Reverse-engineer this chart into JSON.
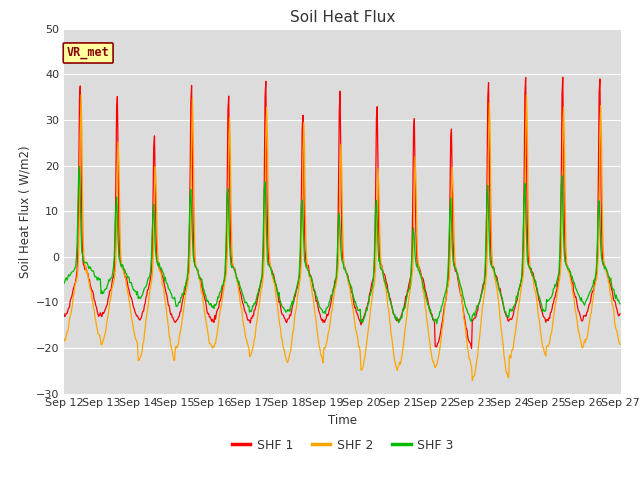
{
  "title": "Soil Heat Flux",
  "ylabel": "Soil Heat Flux (W/m2)",
  "xlabel": "Time",
  "ylim": [
    -30,
    50
  ],
  "background_color": "#dcdcdc",
  "legend_label": "VR_met",
  "series_colors": [
    "#ff0000",
    "#ffa500",
    "#00bb00"
  ],
  "series_names": [
    "SHF 1",
    "SHF 2",
    "SHF 3"
  ],
  "xtick_labels": [
    "Sep 12",
    "Sep 13",
    "Sep 14",
    "Sep 15",
    "Sep 16",
    "Sep 17",
    "Sep 18",
    "Sep 19",
    "Sep 20",
    "Sep 21",
    "Sep 22",
    "Sep 23",
    "Sep 24",
    "Sep 25",
    "Sep 26",
    "Sep 27"
  ],
  "n_days": 15,
  "shf1_peaks": [
    41,
    39,
    30,
    41,
    39,
    42,
    35,
    40,
    37,
    34,
    33,
    42,
    43,
    43,
    43
  ],
  "shf2_peaks": [
    37,
    27,
    22,
    37,
    32,
    35,
    31,
    27,
    22,
    24,
    22,
    37,
    38,
    35,
    35
  ],
  "shf3_peaks": [
    21,
    15,
    14,
    18,
    18,
    20,
    16,
    13,
    16,
    10,
    16,
    19,
    19,
    20,
    15
  ],
  "shf1_neg": [
    13,
    13,
    14,
    14,
    14,
    14,
    14,
    14,
    14,
    14,
    20,
    14,
    14,
    14,
    13
  ],
  "shf2_neg": [
    18,
    19,
    23,
    20,
    20,
    22,
    23,
    20,
    25,
    24,
    24,
    27,
    22,
    20,
    19
  ],
  "shf3_neg": [
    5,
    8,
    9,
    11,
    11,
    12,
    12,
    12,
    14,
    14,
    14,
    13,
    12,
    10,
    10
  ],
  "pts_per_day": 48
}
